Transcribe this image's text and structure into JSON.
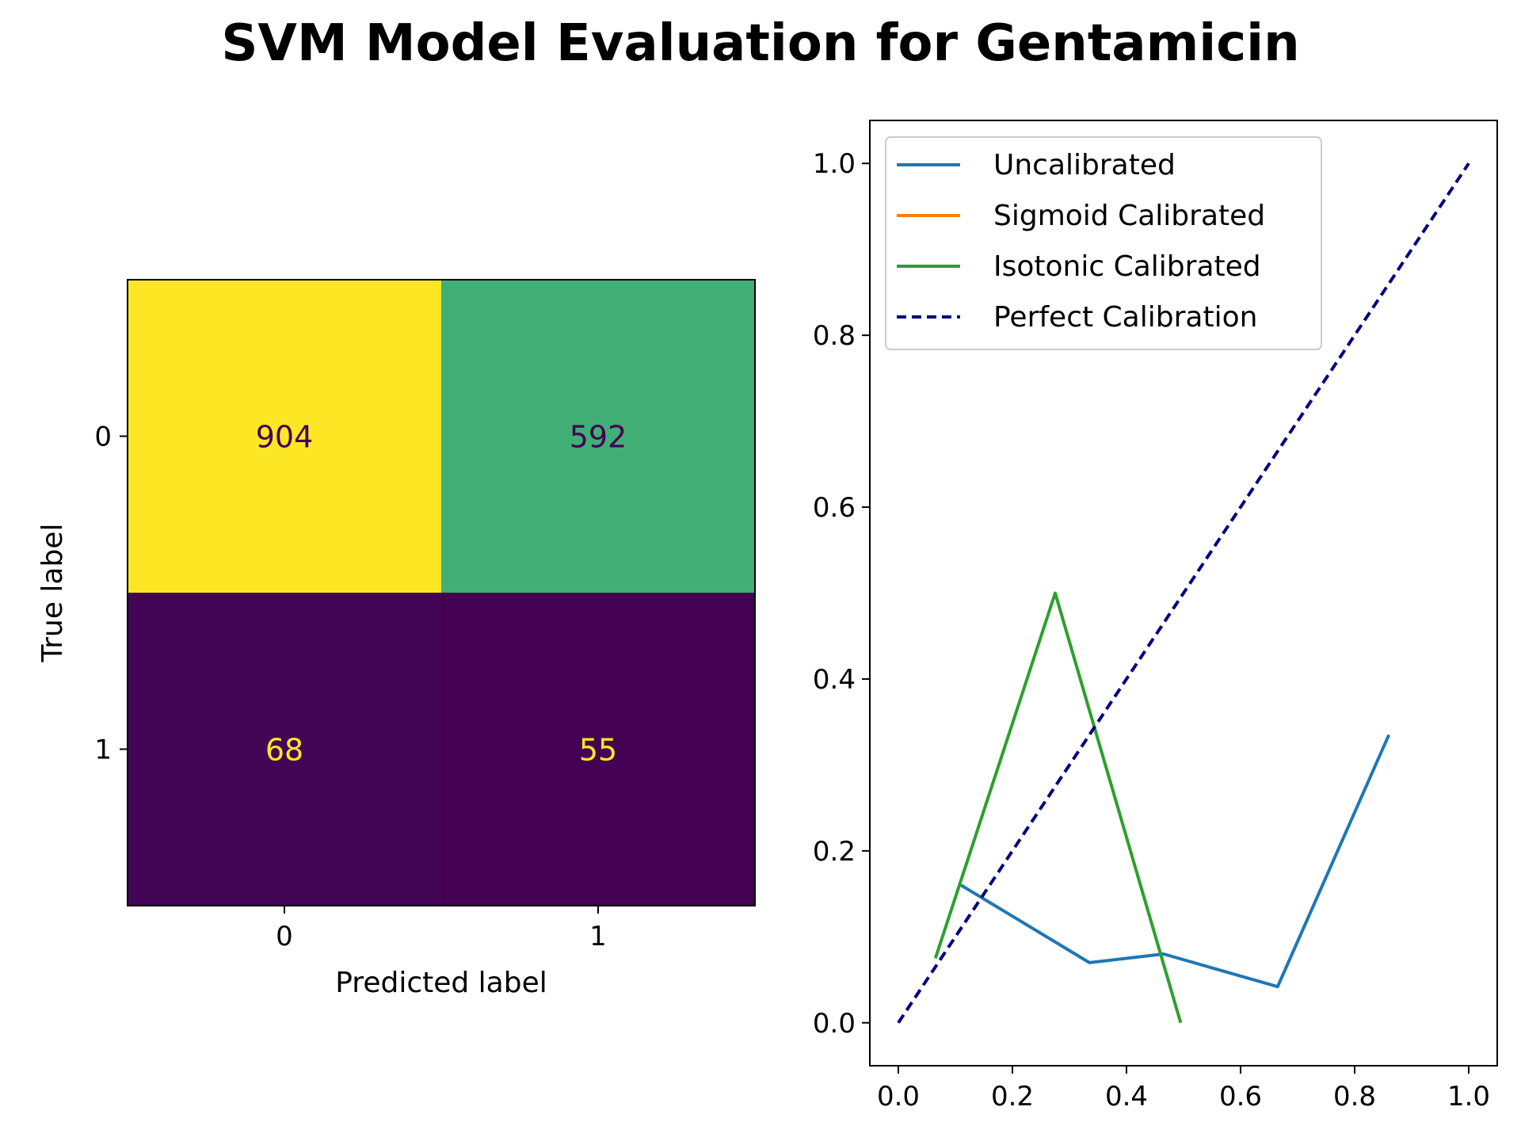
{
  "title": "SVM Model Evaluation for Gentamicin",
  "chart_data": [
    {
      "type": "heatmap",
      "subtype": "confusion_matrix",
      "xlabel": "Predicted label",
      "ylabel": "True label",
      "x_ticks": [
        "0",
        "1"
      ],
      "y_ticks": [
        "0",
        "1"
      ],
      "matrix": [
        [
          904,
          592
        ],
        [
          68,
          55
        ]
      ],
      "colormap": "viridis",
      "colors": {
        "low": "#440154",
        "high": "#fde725",
        "mid_592": "#2aaf7f",
        "light_text": "#fde725",
        "dark_text": "#440154"
      }
    },
    {
      "type": "line",
      "xlim": [
        -0.05,
        1.05
      ],
      "ylim": [
        -0.05,
        1.05
      ],
      "x_ticks": [
        "0.0",
        "0.2",
        "0.4",
        "0.6",
        "0.8",
        "1.0"
      ],
      "y_ticks": [
        "0.0",
        "0.2",
        "0.4",
        "0.6",
        "0.8",
        "1.0"
      ],
      "legend_position": "upper-left",
      "series": [
        {
          "name": "Uncalibrated",
          "color": "#1f77b4",
          "style": "solid",
          "x": [
            0.11,
            0.335,
            0.465,
            0.665,
            0.86
          ],
          "y": [
            0.16,
            0.07,
            0.08,
            0.042,
            0.335
          ]
        },
        {
          "name": "Sigmoid Calibrated",
          "color": "#ff7f0e",
          "style": "solid",
          "x": [],
          "y": []
        },
        {
          "name": "Isotonic Calibrated",
          "color": "#2ca02c",
          "style": "solid",
          "x": [
            0.065,
            0.275,
            0.495
          ],
          "y": [
            0.075,
            0.5,
            0.0
          ]
        },
        {
          "name": "Perfect Calibration",
          "color": "#000080",
          "style": "dashed",
          "x": [
            0,
            1
          ],
          "y": [
            0,
            1
          ]
        }
      ]
    }
  ]
}
